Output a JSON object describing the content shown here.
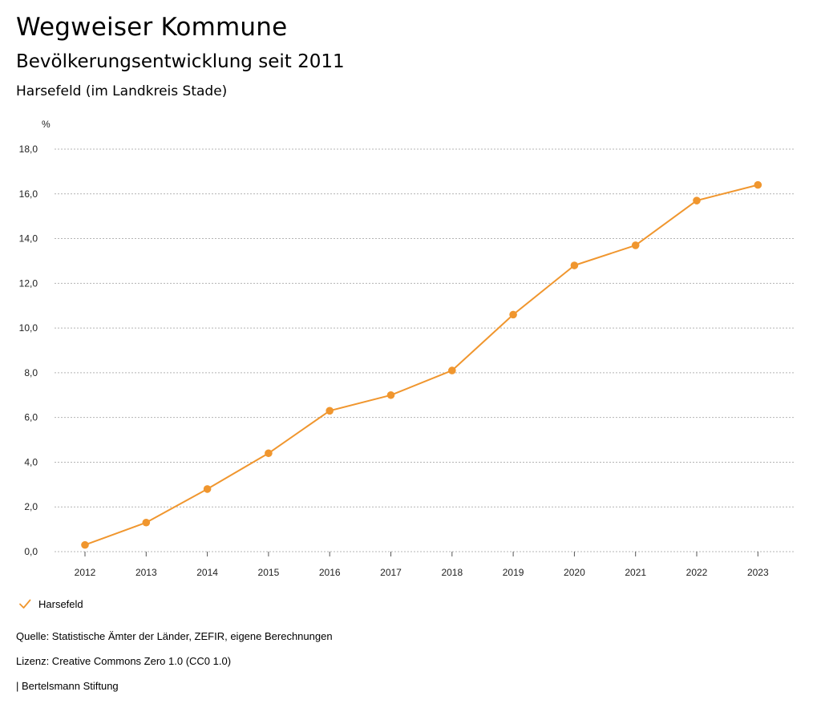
{
  "header": {
    "title": "Wegweiser Kommune",
    "subtitle": "Bevölkerungsentwicklung seit 2011",
    "place": "Harsefeld (im Landkreis Stade)"
  },
  "colors": {
    "series": "#f0962e",
    "grid": "#b4b4b4",
    "axis": "#555555"
  },
  "chart_data": {
    "type": "line",
    "ylabel": "%",
    "ylim": [
      0,
      18
    ],
    "yticks": [
      0,
      2,
      4,
      6,
      8,
      10,
      12,
      14,
      16,
      18
    ],
    "ytick_labels": [
      "0,0",
      "2,0",
      "4,0",
      "6,0",
      "8,0",
      "10,0",
      "12,0",
      "14,0",
      "16,0",
      "18,0"
    ],
    "categories": [
      "2012",
      "2013",
      "2014",
      "2015",
      "2016",
      "2017",
      "2018",
      "2019",
      "2020",
      "2021",
      "2022",
      "2023"
    ],
    "series": [
      {
        "name": "Harsefeld",
        "values": [
          0.3,
          1.3,
          2.8,
          4.4,
          6.3,
          7.0,
          8.1,
          10.6,
          12.8,
          13.7,
          15.7,
          16.4
        ]
      }
    ],
    "grid": true,
    "legend": "bottom-left"
  },
  "legend": {
    "label": "Harsefeld",
    "icon": "check-icon"
  },
  "footer": {
    "source": "Quelle: Statistische Ämter der Länder, ZEFIR, eigene Berechnungen",
    "license": "Lizenz: Creative Commons Zero 1.0 (CC0 1.0)",
    "publisher": "| Bertelsmann Stiftung"
  }
}
